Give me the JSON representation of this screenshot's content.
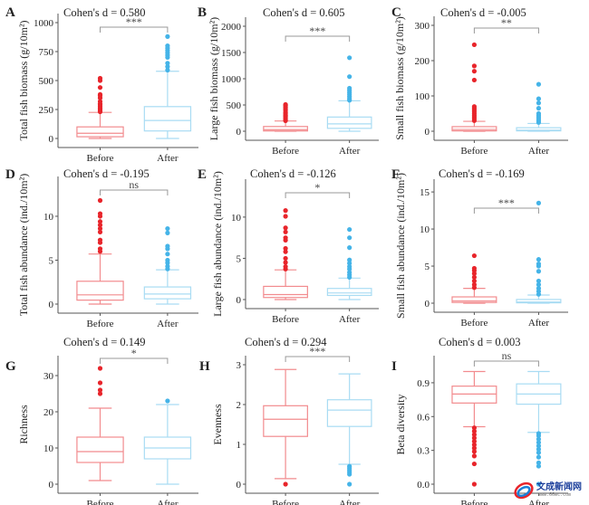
{
  "colors": {
    "before": "#e8252b",
    "before_box": "#f28b8e",
    "after": "#45b4e8",
    "after_box": "#a9dcf3",
    "axis": "#555555",
    "bracket": "#999999"
  },
  "watermark": {
    "text": "文成新闻网",
    "url": "www.66wc.com"
  },
  "chart_data": [
    {
      "type": "box",
      "panel": "A",
      "ylabel": "Total fish biomass (g/10m²)",
      "cohen": "Cohen's d = 0.580",
      "sig": "***",
      "categories": [
        "Before",
        "After"
      ],
      "ylim": [
        0,
        1000
      ],
      "yticks": [
        0,
        250,
        500,
        750,
        1000
      ],
      "tick_labels": [
        "0",
        "250",
        "500",
        "750",
        "1000"
      ],
      "series": [
        {
          "name": "Before",
          "min": 0,
          "q1": 15,
          "median": 45,
          "q3": 100,
          "max": 225,
          "outliers": [
            230,
            240,
            250,
            260,
            275,
            290,
            300,
            320,
            350,
            370,
            380,
            440,
            500,
            520
          ]
        },
        {
          "name": "After",
          "min": 0,
          "q1": 65,
          "median": 155,
          "q3": 275,
          "max": 580,
          "outliers": [
            590,
            620,
            650,
            700,
            720,
            740,
            760,
            780,
            800,
            880
          ]
        }
      ]
    },
    {
      "type": "box",
      "panel": "B",
      "ylabel": "Large fish biomass (g/10m²)",
      "cohen": "Cohen's d = 0.605",
      "sig": "***",
      "categories": [
        "Before",
        "After"
      ],
      "ylim": [
        0,
        2000
      ],
      "yticks": [
        0,
        500,
        1000,
        1500,
        2000
      ],
      "tick_labels": [
        "0",
        "500",
        "1000",
        "1500",
        "2000"
      ],
      "series": [
        {
          "name": "Before",
          "min": 0,
          "q1": 5,
          "median": 30,
          "q3": 90,
          "max": 195,
          "outliers": [
            200,
            220,
            250,
            280,
            300,
            330,
            360,
            400,
            430,
            460,
            490,
            510
          ]
        },
        {
          "name": "After",
          "min": 0,
          "q1": 55,
          "median": 140,
          "q3": 270,
          "max": 580,
          "outliers": [
            590,
            620,
            660,
            700,
            740,
            780,
            820,
            1040,
            1400
          ]
        }
      ]
    },
    {
      "type": "box",
      "panel": "C",
      "ylabel": "Small fish biomass (g/10m²)",
      "cohen": "Cohen's d = -0.005",
      "sig": "**",
      "categories": [
        "Before",
        "After"
      ],
      "ylim": [
        0,
        300
      ],
      "yticks": [
        0,
        100,
        200,
        300
      ],
      "tick_labels": [
        "0",
        "100",
        "200",
        "300"
      ],
      "series": [
        {
          "name": "Before",
          "min": 0,
          "q1": 1,
          "median": 5,
          "q3": 13,
          "max": 28,
          "outliers": [
            30,
            35,
            40,
            45,
            50,
            55,
            60,
            65,
            70,
            145,
            170,
            185,
            245
          ]
        },
        {
          "name": "After",
          "min": 0,
          "q1": 1,
          "median": 3,
          "q3": 10,
          "max": 22,
          "outliers": [
            25,
            30,
            35,
            40,
            45,
            50,
            65,
            80,
            92,
            133
          ]
        }
      ]
    },
    {
      "type": "box",
      "panel": "D",
      "ylabel": "Total fish abundance (ind./10m²)",
      "cohen": "Cohen's d = -0.195",
      "sig": "ns",
      "categories": [
        "Before",
        "After"
      ],
      "ylim": [
        0,
        13.5
      ],
      "yticks": [
        0,
        5,
        10
      ],
      "tick_labels": [
        "0",
        "5",
        "10"
      ],
      "series": [
        {
          "name": "Before",
          "min": 0,
          "q1": 0.45,
          "median": 1.05,
          "q3": 2.6,
          "max": 5.7,
          "outliers": [
            6.0,
            6.3,
            7.0,
            7.3,
            8.2,
            8.6,
            9.0,
            9.4,
            10.0,
            10.3,
            11.8
          ]
        },
        {
          "name": "After",
          "min": 0,
          "q1": 0.6,
          "median": 1.15,
          "q3": 1.95,
          "max": 3.9,
          "outliers": [
            4.0,
            4.3,
            4.7,
            5.0,
            5.7,
            6.3,
            6.6,
            8.1,
            8.6
          ]
        }
      ]
    },
    {
      "type": "box",
      "panel": "E",
      "ylabel": "Large fish abundance (ind./10m²)",
      "cohen": "Cohen's d = -0.126",
      "sig": "*",
      "categories": [
        "Before",
        "After"
      ],
      "ylim": [
        0,
        13.5
      ],
      "yticks": [
        0,
        5,
        10
      ],
      "tick_labels": [
        "0",
        "5",
        "10"
      ],
      "series": [
        {
          "name": "Before",
          "min": 0,
          "q1": 0.25,
          "median": 0.6,
          "q3": 1.6,
          "max": 3.6,
          "outliers": [
            3.7,
            4.0,
            4.5,
            5.0,
            5.8,
            6.2,
            7.2,
            7.5,
            8.2,
            8.7,
            10.1,
            10.8
          ]
        },
        {
          "name": "After",
          "min": 0,
          "q1": 0.5,
          "median": 0.8,
          "q3": 1.35,
          "max": 2.6,
          "outliers": [
            2.7,
            3.0,
            3.3,
            3.7,
            4.0,
            4.4,
            4.8,
            6.3,
            7.5,
            8.5
          ]
        }
      ]
    },
    {
      "type": "box",
      "panel": "F",
      "ylabel": "Small fish abundance (ind./10m²)",
      "cohen": "Cohen's d = -0.169",
      "sig": "***",
      "categories": [
        "Before",
        "After"
      ],
      "ylim": [
        0,
        15.5
      ],
      "yticks": [
        0,
        5,
        10,
        15
      ],
      "tick_labels": [
        "0",
        "5",
        "10",
        "15"
      ],
      "series": [
        {
          "name": "Before",
          "min": 0,
          "q1": 0.1,
          "median": 0.3,
          "q3": 0.85,
          "max": 2.0,
          "outliers": [
            2.1,
            2.5,
            3.0,
            3.5,
            4.0,
            4.4,
            4.7,
            6.4
          ]
        },
        {
          "name": "After",
          "min": 0,
          "q1": 0.05,
          "median": 0.15,
          "q3": 0.5,
          "max": 1.1,
          "outliers": [
            1.2,
            1.6,
            2.0,
            2.5,
            3.0,
            4.3,
            5.0,
            5.3,
            5.9,
            13.5
          ]
        }
      ]
    },
    {
      "type": "box",
      "panel": "G",
      "ylabel": "Richness",
      "cohen": "Cohen's d = 0.149",
      "sig": "*",
      "categories": [
        "Before",
        "After"
      ],
      "ylim": [
        0,
        33
      ],
      "yticks": [
        0,
        10,
        20,
        30
      ],
      "tick_labels": [
        "0",
        "10",
        "20",
        "30"
      ],
      "series": [
        {
          "name": "Before",
          "min": 1,
          "q1": 6,
          "median": 9,
          "q3": 13,
          "max": 21,
          "outliers": [
            25,
            26,
            28,
            32
          ]
        },
        {
          "name": "After",
          "min": 0,
          "q1": 7,
          "median": 10,
          "q3": 13,
          "max": 22,
          "outliers": [
            23
          ]
        }
      ]
    },
    {
      "type": "box",
      "panel": "H",
      "ylabel": "Evenness",
      "cohen": "Cohen's d = 0.294",
      "sig": "***",
      "categories": [
        "Before",
        "After"
      ],
      "ylim": [
        0,
        3
      ],
      "yticks": [
        0,
        1,
        2,
        3
      ],
      "tick_labels": [
        "0",
        "1",
        "2",
        "3"
      ],
      "series": [
        {
          "name": "Before",
          "min": 0.14,
          "q1": 1.2,
          "median": 1.63,
          "q3": 1.97,
          "max": 2.88,
          "outliers": [
            0
          ]
        },
        {
          "name": "After",
          "min": 0.5,
          "q1": 1.45,
          "median": 1.86,
          "q3": 2.12,
          "max": 2.77,
          "outliers": [
            0,
            0.25,
            0.3,
            0.35,
            0.4,
            0.45
          ]
        }
      ]
    },
    {
      "type": "box",
      "panel": "I",
      "ylabel": "Beta diversity",
      "cohen": "Cohen's d = 0.003",
      "sig": "ns",
      "categories": [
        "Before",
        "After"
      ],
      "ylim": [
        0,
        1.06
      ],
      "yticks": [
        0,
        0.3,
        0.6,
        0.9
      ],
      "tick_labels": [
        "0.0",
        "0.3",
        "0.6",
        "0.9"
      ],
      "series": [
        {
          "name": "Before",
          "min": 0.51,
          "q1": 0.72,
          "median": 0.8,
          "q3": 0.87,
          "max": 1.0,
          "outliers": [
            0,
            0.18,
            0.25,
            0.29,
            0.32,
            0.35,
            0.38,
            0.41,
            0.44,
            0.47,
            0.5
          ]
        },
        {
          "name": "After",
          "min": 0.46,
          "q1": 0.71,
          "median": 0.8,
          "q3": 0.89,
          "max": 1.0,
          "outliers": [
            0,
            0.16,
            0.19,
            0.24,
            0.28,
            0.31,
            0.34,
            0.37,
            0.4,
            0.43,
            0.45
          ]
        }
      ]
    }
  ]
}
